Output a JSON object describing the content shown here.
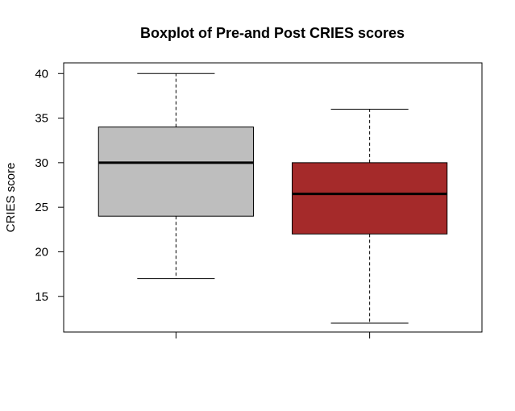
{
  "chart_data": {
    "type": "boxplot",
    "title": "Boxplot of Pre-and Post CRIES scores",
    "xlabel": "",
    "ylabel": "CRIES score",
    "ylim": [
      11,
      41.2
    ],
    "yticks": [
      15,
      20,
      25,
      30,
      35,
      40
    ],
    "grid": false,
    "legend": "none",
    "boxes": [
      {
        "whisker_low": 17,
        "q1": 24,
        "median": 30,
        "q3": 34,
        "whisker_high": 40,
        "color": "#bebebe"
      },
      {
        "whisker_low": 12,
        "q1": 22,
        "median": 26.5,
        "q3": 30,
        "whisker_high": 36,
        "color": "#a52a2a"
      }
    ]
  }
}
